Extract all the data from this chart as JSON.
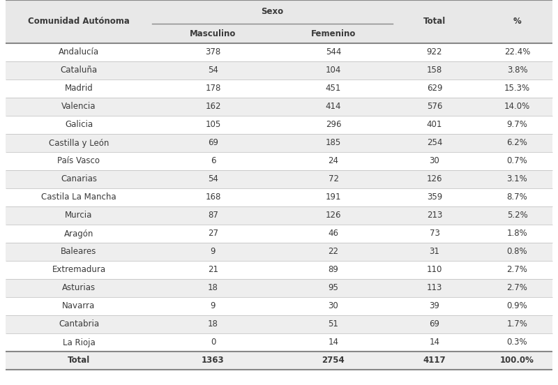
{
  "title": "Sexo",
  "col1_header": "Comunidad Autónoma",
  "col2_header": "Masculino",
  "col3_header": "Femenino",
  "col4_header": "Total",
  "col5_header": "%",
  "rows": [
    [
      "Andalucía",
      "378",
      "544",
      "922",
      "22.4%"
    ],
    [
      "Cataluña",
      "54",
      "104",
      "158",
      "3.8%"
    ],
    [
      "Madrid",
      "178",
      "451",
      "629",
      "15.3%"
    ],
    [
      "Valencia",
      "162",
      "414",
      "576",
      "14.0%"
    ],
    [
      "Galicia",
      "105",
      "296",
      "401",
      "9.7%"
    ],
    [
      "Castilla y León",
      "69",
      "185",
      "254",
      "6.2%"
    ],
    [
      "País Vasco",
      "6",
      "24",
      "30",
      "0.7%"
    ],
    [
      "Canarias",
      "54",
      "72",
      "126",
      "3.1%"
    ],
    [
      "Castila La Mancha",
      "168",
      "191",
      "359",
      "8.7%"
    ],
    [
      "Murcia",
      "87",
      "126",
      "213",
      "5.2%"
    ],
    [
      "Aragón",
      "27",
      "46",
      "73",
      "1.8%"
    ],
    [
      "Baleares",
      "9",
      "22",
      "31",
      "0.8%"
    ],
    [
      "Extremadura",
      "21",
      "89",
      "110",
      "2.7%"
    ],
    [
      "Asturias",
      "18",
      "95",
      "113",
      "2.7%"
    ],
    [
      "Navarra",
      "9",
      "30",
      "39",
      "0.9%"
    ],
    [
      "Cantabria",
      "18",
      "51",
      "69",
      "1.7%"
    ],
    [
      "La Rioja",
      "0",
      "14",
      "14",
      "0.3%"
    ],
    [
      "Total",
      "1363",
      "2754",
      "4117",
      "100.0%"
    ]
  ],
  "bg_light": "#eeeeee",
  "bg_white": "#ffffff",
  "text_color": "#3a3a3a",
  "line_color_light": "#bbbbbb",
  "line_color_bold": "#888888",
  "header_bg": "#e8e8e8"
}
